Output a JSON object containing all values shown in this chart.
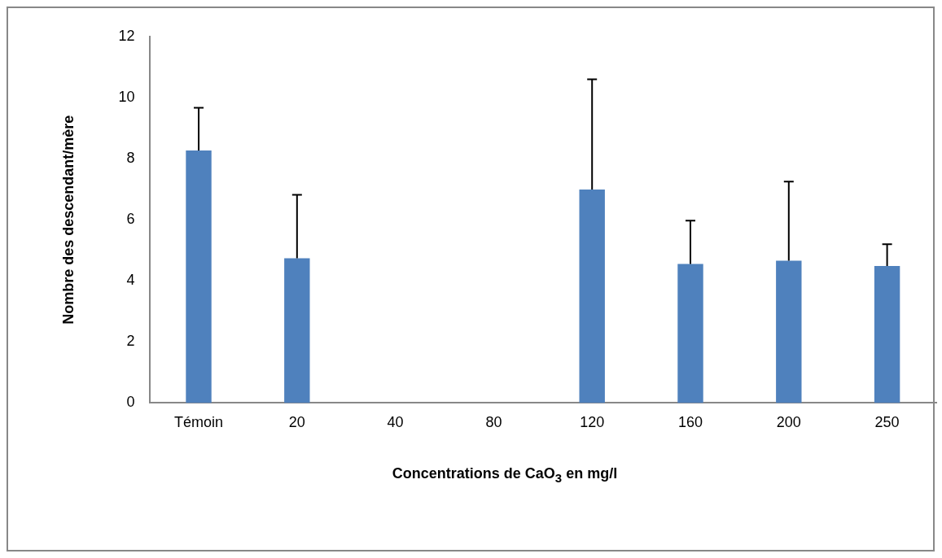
{
  "chart_data": {
    "type": "bar",
    "xlabel": "Concentrations de CaO$_{3}$ en mg/l",
    "ylabel": "Nombre des descendant/mère",
    "categories": [
      "Témoin",
      "20",
      "40",
      "80",
      "120",
      "160",
      "200",
      "250"
    ],
    "values": [
      8.27,
      4.74,
      0,
      0,
      6.99,
      4.55,
      4.66,
      4.49
    ],
    "errors": [
      [
        8.27,
        9.67
      ],
      [
        4.74,
        6.82
      ],
      null,
      null,
      [
        6.99,
        10.6
      ],
      [
        4.55,
        5.97
      ],
      [
        4.66,
        7.25
      ],
      [
        4.49,
        5.2
      ]
    ],
    "color": "#4f81bd",
    "ylim": [
      0,
      12
    ],
    "yticks": [
      0,
      2,
      4,
      6,
      8,
      10,
      12
    ],
    "grid": false,
    "legend": false
  }
}
